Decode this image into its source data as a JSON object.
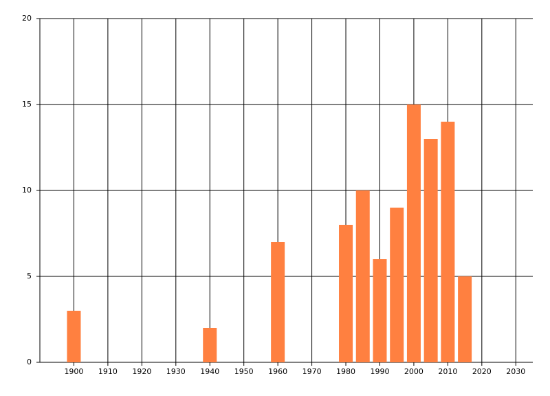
{
  "chart_data": {
    "type": "bar",
    "x": [
      1900,
      1940,
      1960,
      1980,
      1985,
      1990,
      1995,
      2000,
      2005,
      2010,
      2015
    ],
    "values": [
      3,
      2,
      7,
      8,
      10,
      6,
      9,
      15,
      13,
      14,
      5
    ],
    "color": "#ff8040",
    "xlim": [
      1890,
      2035
    ],
    "xticks": [
      1900,
      1910,
      1920,
      1930,
      1940,
      1950,
      1960,
      1970,
      1980,
      1990,
      2000,
      2010,
      2020,
      2030
    ],
    "ylim": [
      0,
      20
    ],
    "yticks": [
      0,
      5,
      10,
      15,
      20
    ],
    "grid": true
  }
}
